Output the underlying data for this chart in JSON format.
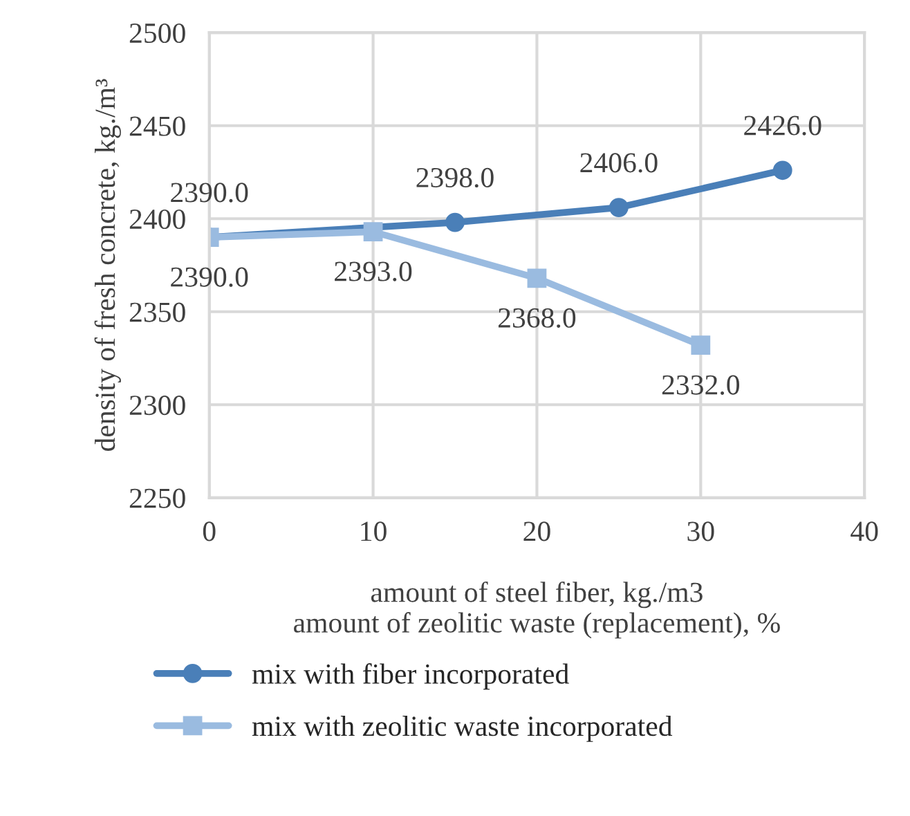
{
  "chart_data": {
    "type": "line",
    "xlabel": "amount of steel fiber, kg./m3\namount of zeolitic waste (replacement), %",
    "ylabel": "density of fresh concrete, kg./m³",
    "series": [
      {
        "name": "mix with fiber incorporated",
        "color": "#4a7fb8",
        "marker": "circle",
        "x": [
          0,
          15,
          25,
          35
        ],
        "values": [
          2390,
          2398,
          2406,
          2426
        ],
        "value_labels": [
          "2390.0",
          "2398.0",
          "2406.0",
          "2426.0"
        ]
      },
      {
        "name": "mix with zeolitic waste incorporated",
        "color": "#9abbe0",
        "marker": "square",
        "x": [
          0,
          10,
          20,
          30
        ],
        "values": [
          2390,
          2393,
          2368,
          2332
        ],
        "value_labels": [
          "2390.0",
          "2393.0",
          "2368.0",
          "2332.0"
        ]
      }
    ],
    "xlim": [
      0,
      40
    ],
    "xticks": [
      0,
      10,
      20,
      30,
      40
    ],
    "ylim": [
      2250,
      2500
    ],
    "yticks": [
      2250,
      2300,
      2350,
      2400,
      2450,
      2500
    ],
    "grid": true,
    "legend": "bottom"
  }
}
